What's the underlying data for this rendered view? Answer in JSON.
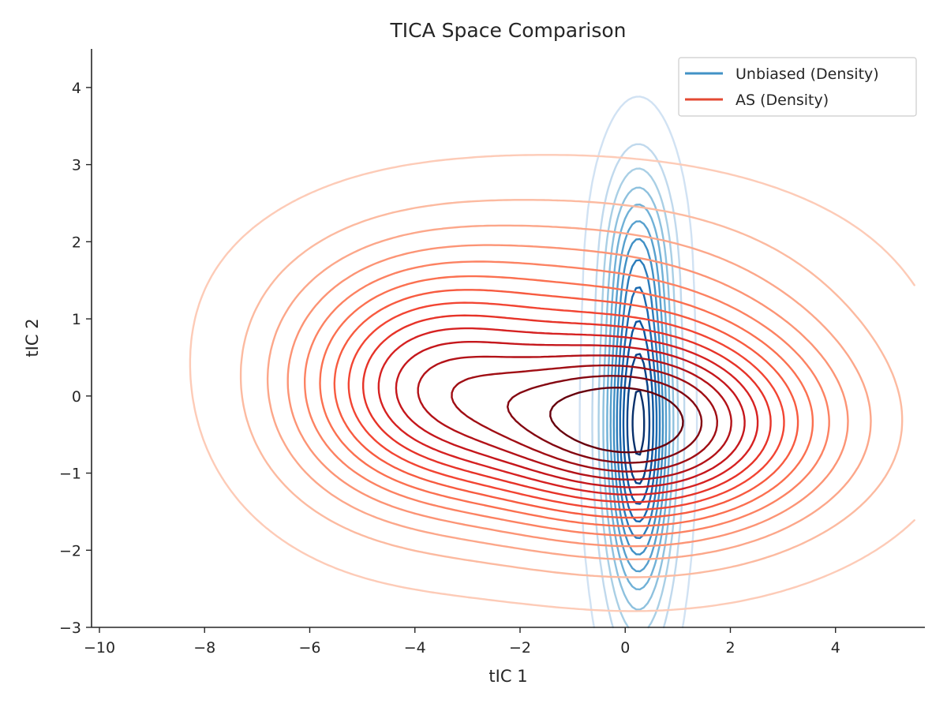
{
  "chart_data": {
    "type": "contour",
    "title": "TICA Space Comparison",
    "xlabel": "tIC 1",
    "ylabel": "tIC 2",
    "xlim": [
      -10.15,
      5.7
    ],
    "ylim": [
      -3.0,
      4.5
    ],
    "xticks": [
      -10,
      -8,
      -6,
      -4,
      -2,
      0,
      2,
      4
    ],
    "yticks": [
      -3,
      -2,
      -1,
      0,
      1,
      2,
      3,
      4
    ],
    "xtick_labels": [
      "−10",
      "−8",
      "−6",
      "−4",
      "−2",
      "0",
      "2",
      "4"
    ],
    "ytick_labels": [
      "−3",
      "−2",
      "−1",
      "0",
      "1",
      "2",
      "3",
      "4"
    ],
    "grid": false,
    "legend_position": "top-right",
    "series": [
      {
        "name": "Unbiased (Density)",
        "color": "#4292c6",
        "colormap": "Blues",
        "modes": [
          {
            "center": [
              0.25,
              -0.4
            ],
            "sx": 0.42,
            "sy": 1.5,
            "weight": 1.0
          },
          {
            "center": [
              0.25,
              1.9
            ],
            "sx": 0.42,
            "sy": 0.8,
            "weight": 0.28
          }
        ]
      },
      {
        "name": "AS (Density)",
        "color": "#e34a33",
        "colormap": "Reds",
        "modes": [
          {
            "center": [
              0.25,
              -0.4
            ],
            "sx": 2.3,
            "sy": 0.9,
            "weight": 1.0
          },
          {
            "center": [
              -4.0,
              0.1
            ],
            "sx": 1.7,
            "sy": 1.0,
            "weight": 0.55
          },
          {
            "center": [
              -1.0,
              1.3
            ],
            "sx": 3.0,
            "sy": 0.9,
            "weight": 0.22
          }
        ]
      }
    ]
  }
}
